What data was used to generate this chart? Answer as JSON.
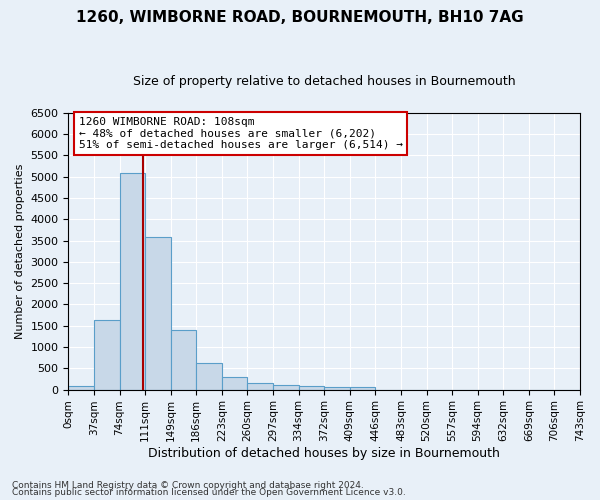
{
  "title": "1260, WIMBORNE ROAD, BOURNEMOUTH, BH10 7AG",
  "subtitle": "Size of property relative to detached houses in Bournemouth",
  "xlabel": "Distribution of detached houses by size in Bournemouth",
  "ylabel": "Number of detached properties",
  "footnote1": "Contains HM Land Registry data © Crown copyright and database right 2024.",
  "footnote2": "Contains public sector information licensed under the Open Government Licence v3.0.",
  "bar_values": [
    75,
    1625,
    5075,
    3575,
    1400,
    625,
    300,
    150,
    100,
    75,
    50,
    50,
    0,
    0,
    0,
    0,
    0,
    0,
    0,
    0
  ],
  "bar_labels": [
    "0sqm",
    "37sqm",
    "74sqm",
    "111sqm",
    "149sqm",
    "186sqm",
    "223sqm",
    "260sqm",
    "297sqm",
    "334sqm",
    "372sqm",
    "409sqm",
    "446sqm",
    "483sqm",
    "520sqm",
    "557sqm",
    "594sqm",
    "632sqm",
    "669sqm",
    "706sqm",
    "743sqm"
  ],
  "bar_color": "#c8d8e8",
  "bar_edge_color": "#5a9ec9",
  "vline_x_bin": 2.92,
  "vline_color": "#aa0000",
  "annotation_text": "1260 WIMBORNE ROAD: 108sqm\n← 48% of detached houses are smaller (6,202)\n51% of semi-detached houses are larger (6,514) →",
  "annotation_box_color": "#ffffff",
  "annotation_box_edge": "#cc0000",
  "ylim_max": 6500,
  "yticks": [
    0,
    500,
    1000,
    1500,
    2000,
    2500,
    3000,
    3500,
    4000,
    4500,
    5000,
    5500,
    6000,
    6500
  ],
  "background_color": "#e8f0f8",
  "grid_color": "#ffffff",
  "bin_width": 37,
  "n_bins": 20
}
